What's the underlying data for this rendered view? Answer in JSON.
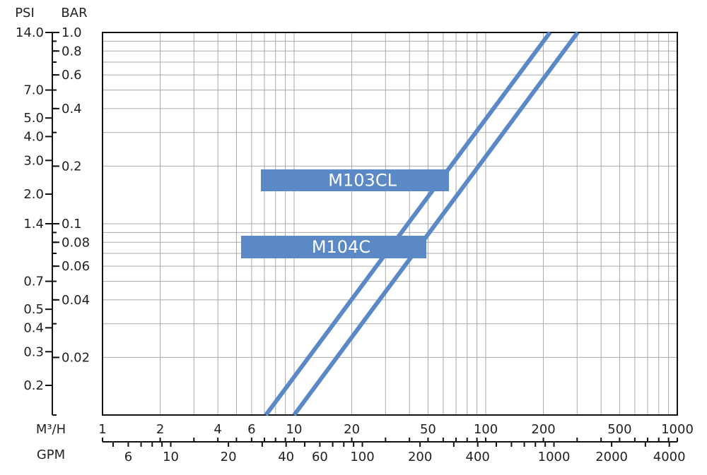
{
  "chart_data": {
    "type": "line",
    "xlabel": "M³/H",
    "x2label": "GPM",
    "ylabel": "BAR",
    "y2label": "PSI",
    "xscale": "log",
    "yscale": "log",
    "grid": true,
    "xlim": [
      1,
      1000
    ],
    "xticks": [
      1,
      2,
      4,
      6,
      10,
      20,
      50,
      100,
      200,
      500,
      1000
    ],
    "xgrid": [
      1,
      2,
      3,
      4,
      5,
      6,
      7,
      8,
      9,
      10,
      20,
      30,
      40,
      50,
      60,
      70,
      80,
      90,
      100,
      200,
      300,
      400,
      500,
      600,
      700,
      800,
      900,
      1000
    ],
    "x2lim": [
      4.403,
      4403
    ],
    "x2ticks": [
      6,
      10,
      20,
      40,
      60,
      100,
      200,
      400,
      1000,
      2000,
      4000
    ],
    "x2minor": [
      5,
      6,
      7,
      8,
      9,
      10,
      20,
      30,
      40,
      50,
      60,
      70,
      80,
      90,
      100,
      200,
      300,
      400,
      500,
      600,
      700,
      800,
      900,
      1000,
      2000,
      3000,
      4000
    ],
    "ylim": [
      0.01,
      1
    ],
    "yticks": [
      {
        "value": 1,
        "label": "1.0"
      },
      0.8,
      0.6,
      0.4,
      0.2,
      0.1,
      0.08,
      0.06,
      0.04,
      0.02
    ],
    "ygrid": [
      0.01,
      0.02,
      0.03,
      0.04,
      0.05,
      0.06,
      0.07,
      0.08,
      0.09,
      0.1,
      0.2,
      0.3,
      0.4,
      0.5,
      0.6,
      0.7,
      0.8,
      0.9,
      1
    ],
    "y2lim": [
      0.14,
      14
    ],
    "y2ticks": [
      {
        "value": 14,
        "label": "14.0"
      },
      {
        "value": 7,
        "label": "7.0"
      },
      {
        "value": 5,
        "label": "5.0"
      },
      {
        "value": 4,
        "label": "4.0"
      },
      {
        "value": 3,
        "label": "3.0"
      },
      {
        "value": 2,
        "label": "2.0"
      },
      1.4,
      0.7,
      0.5,
      0.4,
      0.3,
      0.2
    ],
    "series": [
      {
        "name": "M103CL",
        "color": "#5b89c6",
        "x": [
          7.12,
          216.6
        ],
        "values": [
          0.01,
          1
        ]
      },
      {
        "name": "M104C",
        "color": "#5b89c6",
        "x": [
          10.0,
          302
        ],
        "values": [
          0.01,
          1
        ]
      }
    ]
  }
}
